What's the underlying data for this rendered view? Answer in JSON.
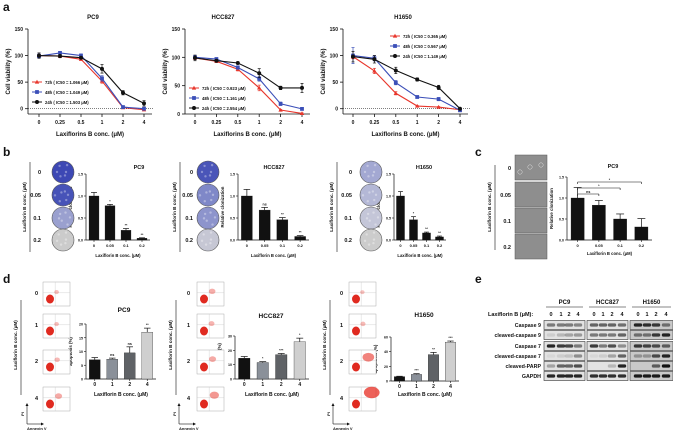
{
  "panel_labels": [
    "a",
    "b",
    "c",
    "d",
    "e"
  ],
  "chart_data": [
    {
      "id": "a-pc9",
      "type": "line",
      "title": "PC9",
      "xlabel": "Laxiflorins B conc. (μM)",
      "ylabel": "Cell viability (%)",
      "categories": [
        "0",
        "0.25",
        "0.5",
        "1",
        "2",
        "4"
      ],
      "ylim": [
        -10,
        150
      ],
      "yticks": [
        0,
        50,
        100,
        150
      ],
      "ytick_labels": [
        "0",
        "50",
        "100",
        "150"
      ],
      "zero_line": true,
      "series": [
        {
          "name": "72h ( IC50 = 1.066 μM)",
          "color": "#e8362c",
          "marker": "triangle",
          "values": [
            100,
            99,
            93,
            52,
            2,
            -2
          ],
          "errors": [
            3,
            2,
            2,
            4,
            1,
            1
          ]
        },
        {
          "name": "48h ( IC50 = 1.049 μM)",
          "color": "#3b4fb8",
          "marker": "square",
          "values": [
            99,
            105,
            100,
            57,
            3,
            0
          ],
          "errors": [
            4,
            2,
            3,
            5,
            1,
            1
          ]
        },
        {
          "name": "24h ( IC50 = 1.503 μM)",
          "color": "#111111",
          "marker": "circle",
          "values": [
            100,
            99,
            96,
            75,
            30,
            10
          ],
          "errors": [
            5,
            3,
            2,
            8,
            4,
            5
          ]
        }
      ]
    },
    {
      "id": "a-hcc827",
      "type": "line",
      "title": "HCC827",
      "xlabel": "Laxiflorins B conc. (μM)",
      "ylabel": "Cell viability (%)",
      "categories": [
        "0",
        "0.25",
        "0.5",
        "1",
        "2",
        "4"
      ],
      "ylim": [
        0,
        150
      ],
      "yticks": [
        0,
        50,
        100,
        150
      ],
      "ytick_labels": [
        "0",
        "50",
        "100",
        "150"
      ],
      "zero_line": false,
      "series": [
        {
          "name": "72h ( IC50 = 0.923 μM)",
          "color": "#e8362c",
          "marker": "triangle",
          "values": [
            99,
            93,
            79,
            46,
            7,
            1
          ],
          "errors": [
            3,
            2,
            3,
            5,
            1,
            1
          ]
        },
        {
          "name": "48h ( IC50 = 1.161 μM)",
          "color": "#3b4fb8",
          "marker": "square",
          "values": [
            100,
            97,
            82,
            62,
            18,
            9
          ],
          "errors": [
            3,
            2,
            3,
            4,
            3,
            2
          ]
        },
        {
          "name": "24h ( IC50 = 2.554 μM)",
          "color": "#111111",
          "marker": "circle",
          "values": [
            99,
            94,
            90,
            72,
            46,
            46
          ],
          "errors": [
            5,
            2,
            2,
            8,
            3,
            8
          ]
        }
      ]
    },
    {
      "id": "a-h1650",
      "type": "line",
      "title": "H1650",
      "xlabel": "Laxiflorins B conc. (μM)",
      "ylabel": "Cell viability (%)",
      "categories": [
        "0",
        "0.25",
        "0.5",
        "1",
        "2",
        "4"
      ],
      "ylim": [
        -10,
        150
      ],
      "yticks": [
        0,
        50,
        100,
        150
      ],
      "ytick_labels": [
        "0",
        "50",
        "100",
        "150"
      ],
      "zero_line": true,
      "series": [
        {
          "name": "72h ( IC50 = 0.365 μM)",
          "color": "#e8362c",
          "marker": "triangle",
          "values": [
            98,
            71,
            29,
            5,
            3,
            -2
          ],
          "errors": [
            4,
            5,
            3,
            1,
            1,
            1
          ]
        },
        {
          "name": "48h ( IC50 = 0.567 μM)",
          "color": "#3b4fb8",
          "marker": "square",
          "values": [
            100,
            95,
            49,
            22,
            18,
            -3
          ],
          "errors": [
            15,
            5,
            4,
            2,
            3,
            1
          ]
        },
        {
          "name": "24h ( IC50 = 1.149 μM)",
          "color": "#111111",
          "marker": "circle",
          "values": [
            98,
            93,
            72,
            55,
            40,
            0
          ],
          "errors": [
            10,
            7,
            6,
            3,
            4,
            1
          ]
        }
      ]
    },
    {
      "id": "b-pc9",
      "type": "bar",
      "title": "PC9",
      "xlabel": "Laxiflorin B conc. (μM)",
      "ylabel": "Relative clonization",
      "categories": [
        "0",
        "0.05",
        "0.1",
        "0.2"
      ],
      "values": [
        1.0,
        0.78,
        0.22,
        0.04
      ],
      "errors": [
        0.08,
        0.03,
        0.04,
        0.01
      ],
      "significance": [
        "",
        "*",
        "**",
        "**"
      ],
      "colors": [
        "#111111",
        "#111111",
        "#111111",
        "#111111"
      ],
      "ylim": [
        0,
        1.5
      ],
      "yticks": [
        0,
        0.5,
        1.0,
        1.5
      ],
      "ytick_labels": [
        "0.0",
        "0.5",
        "1.0",
        "1.5"
      ]
    },
    {
      "id": "b-hcc827",
      "type": "bar",
      "title": "HCC827",
      "xlabel": "Laxiflorin B conc. (μM)",
      "ylabel": "Relative clonization",
      "categories": [
        "0",
        "0.05",
        "0.1",
        "0.2"
      ],
      "values": [
        1.0,
        0.68,
        0.46,
        0.08
      ],
      "errors": [
        0.15,
        0.06,
        0.05,
        0.02
      ],
      "significance": [
        "",
        "ns",
        "**",
        "**"
      ],
      "colors": [
        "#111111",
        "#111111",
        "#111111",
        "#111111"
      ],
      "ylim": [
        0,
        1.5
      ],
      "yticks": [
        0,
        0.5,
        1.0,
        1.5
      ],
      "ytick_labels": [
        "0.0",
        "0.5",
        "1.0",
        "1.5"
      ]
    },
    {
      "id": "b-h1650",
      "type": "bar",
      "title": "H1650",
      "xlabel": "Laxiflorin B conc. (μM)",
      "ylabel": "Relative clonization",
      "categories": [
        "0",
        "0.05",
        "0.1",
        "0.2"
      ],
      "values": [
        1.0,
        0.46,
        0.16,
        0.07
      ],
      "errors": [
        0.1,
        0.07,
        0.02,
        0.02
      ],
      "significance": [
        "",
        "*",
        "**",
        "**"
      ],
      "colors": [
        "#111111",
        "#111111",
        "#111111",
        "#111111"
      ],
      "ylim": [
        0,
        1.5
      ],
      "yticks": [
        0,
        0.5,
        1.0,
        1.5
      ],
      "ytick_labels": [
        "0.0",
        "0.5",
        "1.0",
        "1.5"
      ]
    },
    {
      "id": "c-pc9",
      "type": "bar",
      "title": "PC9",
      "xlabel": "Laxiflorin B conc. (μM)",
      "ylabel": "Relative clonization",
      "categories": [
        "0",
        "0.05",
        "0.1",
        "0.2"
      ],
      "values": [
        1.0,
        0.83,
        0.5,
        0.31
      ],
      "errors": [
        0.25,
        0.11,
        0.12,
        0.2
      ],
      "significance": [
        "",
        "",
        "",
        ""
      ],
      "brackets": [
        {
          "from": 0,
          "to": 1,
          "label": "ns"
        },
        {
          "from": 0,
          "to": 2,
          "label": "*"
        },
        {
          "from": 0,
          "to": 3,
          "label": "*"
        }
      ],
      "colors": [
        "#111111",
        "#111111",
        "#111111",
        "#111111"
      ],
      "ylim": [
        0,
        1.5
      ],
      "yticks": [
        0,
        0.5,
        1.0,
        1.5
      ],
      "ytick_labels": [
        "0.0",
        "0.5",
        "1.0",
        "1.5"
      ]
    },
    {
      "id": "d-pc9",
      "type": "bar",
      "title": "PC9",
      "xlabel": "Laxiflorin B conc. (μM)",
      "ylabel": "apoptosis (%)",
      "categories": [
        "0",
        "1",
        "2",
        "4"
      ],
      "values": [
        7,
        7.2,
        9.5,
        17
      ],
      "errors": [
        0.8,
        0.4,
        2.2,
        1.5
      ],
      "significance": [
        "",
        "ns",
        "ns",
        "**"
      ],
      "colors": [
        "#111111",
        "#8a9099",
        "#5f6266",
        "#cfcfcf"
      ],
      "ylim": [
        0,
        20
      ],
      "yticks": [
        0,
        5,
        10,
        15,
        20
      ],
      "ytick_labels": [
        "0",
        "5",
        "10",
        "15",
        "20"
      ]
    },
    {
      "id": "d-hcc827",
      "type": "bar",
      "title": "HCC827",
      "xlabel": "Laxiflorin B conc. (μM)",
      "ylabel": "apoptosis (%)",
      "categories": [
        "0",
        "1",
        "2",
        "4"
      ],
      "values": [
        14.5,
        11.5,
        17,
        26
      ],
      "errors": [
        1.2,
        0.6,
        0.8,
        2.5
      ],
      "significance": [
        "",
        "*",
        "***",
        "*"
      ],
      "colors": [
        "#111111",
        "#8a9099",
        "#5f6266",
        "#cfcfcf"
      ],
      "ylim": [
        0,
        30
      ],
      "yticks": [
        0,
        10,
        20,
        30
      ],
      "ytick_labels": [
        "0",
        "10",
        "20",
        "30"
      ]
    },
    {
      "id": "d-h1650",
      "type": "bar",
      "title": "H1650",
      "xlabel": "Laxiflorin B conc. (μM)",
      "ylabel": "apoptosis (%)",
      "categories": [
        "0",
        "1",
        "2",
        "4"
      ],
      "values": [
        6,
        9,
        36,
        53
      ],
      "errors": [
        0.5,
        1,
        3,
        1.5
      ],
      "significance": [
        "",
        "***",
        "**",
        "***"
      ],
      "colors": [
        "#111111",
        "#8a9099",
        "#5f6266",
        "#cfcfcf"
      ],
      "ylim": [
        0,
        60
      ],
      "yticks": [
        0,
        20,
        40,
        60
      ],
      "ytick_labels": [
        "0",
        "20",
        "40",
        "60"
      ]
    }
  ],
  "colony_assays": [
    {
      "cell_line": "PC9",
      "side_label": "Laxiflorin B conc. (μM)",
      "doses": [
        "0",
        "0.05",
        "0.1",
        "0.2"
      ],
      "well_colors": [
        "#3d48b4",
        "#4753b8",
        "#9aa0cf",
        "#cbcbcb"
      ]
    },
    {
      "cell_line": "HCC827",
      "side_label": "Laxiflorin B conc. (μM)",
      "doses": [
        "0",
        "0.05",
        "0.1",
        "0.2"
      ],
      "well_colors": [
        "#4a55b8",
        "#7f88c8",
        "#8d94cc",
        "#c6c7d4"
      ]
    },
    {
      "cell_line": "H1650",
      "side_label": "Laxiflorin B conc. (μM)",
      "doses": [
        "0",
        "0.05",
        "0.1",
        "0.2"
      ],
      "well_colors": [
        "#a3a8d2",
        "#b4b8d6",
        "#c4c6d8",
        "#cccccc"
      ]
    }
  ],
  "soft_agar": {
    "side_label": "Laxiflorin B conc. (μM)",
    "doses": [
      "0",
      "0.05",
      "0.1",
      "0.2"
    ]
  },
  "flow_cytometry": [
    {
      "cell_line": "PC9",
      "side_label": "Laxiflorin B conc. (μM)",
      "doses": [
        "0",
        "1",
        "2",
        "4"
      ],
      "apoptotic_fraction": [
        0.07,
        0.07,
        0.1,
        0.17
      ]
    },
    {
      "cell_line": "HCC827",
      "side_label": "Laxiflorin B conc. (μM)",
      "doses": [
        "0",
        "1",
        "2",
        "4"
      ],
      "apoptotic_fraction": [
        0.15,
        0.12,
        0.17,
        0.26
      ]
    },
    {
      "cell_line": "H1650",
      "side_label": "Laxiflorin B conc. (μM)",
      "doses": [
        "0",
        "1",
        "2",
        "4"
      ],
      "apoptotic_fraction": [
        0.06,
        0.09,
        0.36,
        0.53
      ]
    }
  ],
  "flow_axes": {
    "y": "PI",
    "x": "Annexin V"
  },
  "western_blot": {
    "dose_label": "Laxiflorin B (μM):",
    "cell_lines": [
      "PC9",
      "HCC827",
      "H1650"
    ],
    "doses": [
      "0",
      "1",
      "2",
      "4"
    ],
    "proteins": [
      {
        "name": "Caspase 9",
        "intensity": [
          [
            0.5,
            0.5,
            0.5,
            0.45
          ],
          [
            0.6,
            0.6,
            0.6,
            0.55
          ],
          [
            0.9,
            0.85,
            0.8,
            0.5
          ]
        ]
      },
      {
        "name": "cleaved-caspase 9",
        "intensity": [
          [
            0.1,
            0.2,
            0.3,
            0.35
          ],
          [
            0.5,
            0.5,
            0.5,
            0.6
          ],
          [
            0.5,
            0.5,
            0.8,
            0.9
          ]
        ]
      },
      {
        "name": "Caspase 7",
        "intensity": [
          [
            0.9,
            0.8,
            0.75,
            0.5
          ],
          [
            0.8,
            0.5,
            0.7,
            0.4
          ],
          [
            0.8,
            0.75,
            0.7,
            0.6
          ]
        ]
      },
      {
        "name": "cleaved-caspase 7",
        "intensity": [
          [
            0.05,
            0.1,
            0.15,
            0.4
          ],
          [
            0.05,
            0.1,
            0.3,
            0.6
          ],
          [
            0.3,
            0.3,
            0.7,
            0.9
          ]
        ]
      },
      {
        "name": "cleaved-PARP",
        "intensity": [
          [
            0.3,
            0.6,
            0.6,
            0.7
          ],
          [
            0.0,
            0.0,
            0.2,
            0.9
          ],
          [
            0.0,
            0.0,
            0.6,
            1.0
          ]
        ]
      },
      {
        "name": "GAPDH",
        "intensity": [
          [
            0.9,
            0.9,
            0.9,
            0.9
          ],
          [
            0.85,
            0.85,
            0.85,
            0.85
          ],
          [
            0.95,
            0.95,
            0.95,
            0.95
          ]
        ]
      }
    ]
  }
}
